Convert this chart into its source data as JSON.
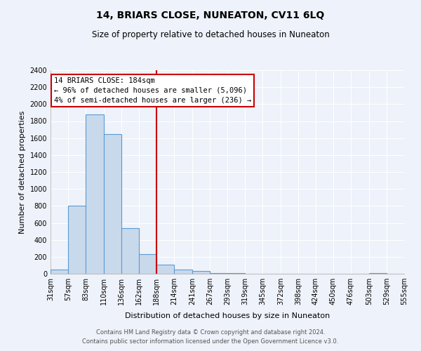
{
  "title": "14, BRIARS CLOSE, NUNEATON, CV11 6LQ",
  "subtitle": "Size of property relative to detached houses in Nuneaton",
  "xlabel": "Distribution of detached houses by size in Nuneaton",
  "ylabel": "Number of detached properties",
  "bar_edges": [
    31,
    57,
    83,
    110,
    136,
    162,
    188,
    214,
    241,
    267,
    293,
    319,
    345,
    372,
    398,
    424,
    450,
    476,
    503,
    529,
    555
  ],
  "bar_heights": [
    50,
    800,
    1880,
    1650,
    540,
    235,
    110,
    50,
    30,
    10,
    5,
    0,
    0,
    0,
    0,
    0,
    0,
    0,
    5,
    0
  ],
  "bar_color": "#c9d9ec",
  "bar_edgecolor": "#5b9bd5",
  "vline_x": 188,
  "vline_color": "#cc0000",
  "annotation_line1": "14 BRIARS CLOSE: 184sqm",
  "annotation_line2": "← 96% of detached houses are smaller (5,096)",
  "annotation_line3": "4% of semi-detached houses are larger (236) →",
  "annotation_box_edgecolor": "#cc0000",
  "ylim": [
    0,
    2400
  ],
  "yticks": [
    0,
    200,
    400,
    600,
    800,
    1000,
    1200,
    1400,
    1600,
    1800,
    2000,
    2200,
    2400
  ],
  "xtick_labels": [
    "31sqm",
    "57sqm",
    "83sqm",
    "110sqm",
    "136sqm",
    "162sqm",
    "188sqm",
    "214sqm",
    "241sqm",
    "267sqm",
    "293sqm",
    "319sqm",
    "345sqm",
    "372sqm",
    "398sqm",
    "424sqm",
    "450sqm",
    "476sqm",
    "503sqm",
    "529sqm",
    "555sqm"
  ],
  "footer_line1": "Contains HM Land Registry data © Crown copyright and database right 2024.",
  "footer_line2": "Contains public sector information licensed under the Open Government Licence v3.0.",
  "background_color": "#eef2fa",
  "grid_color": "#ffffff",
  "title_fontsize": 10,
  "subtitle_fontsize": 8.5,
  "axis_label_fontsize": 8,
  "tick_fontsize": 7,
  "annotation_fontsize": 7.5,
  "footer_fontsize": 6
}
